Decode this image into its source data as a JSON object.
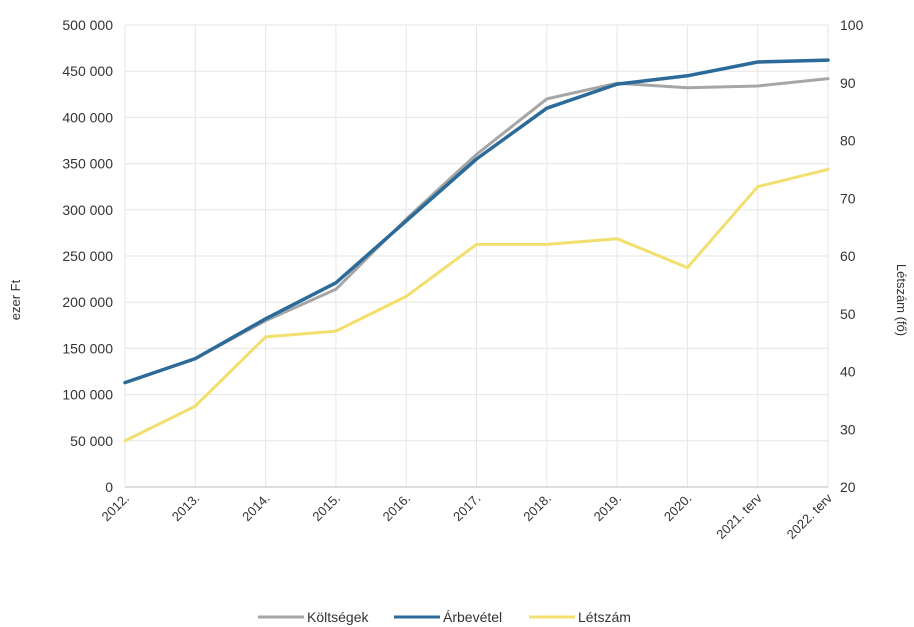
{
  "chart_data": {
    "type": "line",
    "categories": [
      "2012.",
      "2013.",
      "2014.",
      "2015.",
      "2016.",
      "2017.",
      "2018.",
      "2019.",
      "2020.",
      "2021. terv",
      "2022. terv"
    ],
    "y_left": {
      "label": "ezer Ft",
      "ylim": [
        0,
        500000
      ],
      "ticks": [
        "0",
        "50 000",
        "100 000",
        "150 000",
        "200 000",
        "250 000",
        "300 000",
        "350 000",
        "400 000",
        "450 000",
        "500 000"
      ]
    },
    "y_right": {
      "label": "Létszám (fő)",
      "ylim": [
        20,
        100
      ],
      "ticks": [
        "20",
        "30",
        "40",
        "50",
        "60",
        "70",
        "80",
        "90",
        "100"
      ]
    },
    "grid": true,
    "legend_position": "bottom",
    "series": [
      {
        "name": "Költségek",
        "axis": "left",
        "color": "#a6a6a6",
        "values": [
          113000,
          139000,
          180000,
          214000,
          290000,
          360000,
          420000,
          437000,
          432000,
          434000,
          442000
        ]
      },
      {
        "name": "Árbevétel",
        "axis": "left",
        "color": "#2b6a99",
        "values": [
          113000,
          139000,
          182000,
          221000,
          288000,
          355000,
          410000,
          436000,
          445000,
          460000,
          462000
        ]
      },
      {
        "name": "Létszám",
        "axis": "right",
        "color": "#f2df6e",
        "values": [
          28,
          34,
          46,
          47,
          53,
          62,
          62,
          63,
          58,
          72,
          75
        ]
      }
    ]
  }
}
